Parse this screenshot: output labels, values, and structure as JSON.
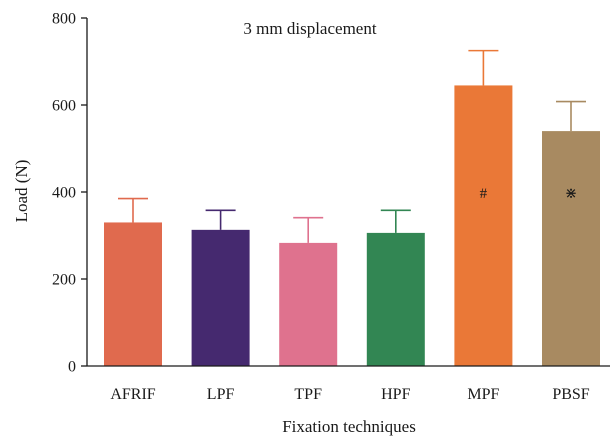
{
  "chart_data": {
    "type": "bar",
    "title": "3 mm displacement",
    "xlabel": "Fixation techniques",
    "ylabel": "Load (N)",
    "ylim": [
      0,
      800
    ],
    "yticks": [
      0,
      200,
      400,
      600,
      800
    ],
    "categories": [
      "AFRIF",
      "LPF",
      "TPF",
      "HPF",
      "MPF",
      "PBSF"
    ],
    "values": [
      330,
      313,
      283,
      306,
      645,
      540
    ],
    "errors": [
      55,
      45,
      58,
      52,
      80,
      68
    ],
    "colors": [
      "#e06a4e",
      "#45296f",
      "#df728e",
      "#328653",
      "#ea7837",
      "#a88a61"
    ],
    "markers": [
      "",
      "",
      "",
      "",
      "#",
      "⋇"
    ],
    "grid": false,
    "legend": "none"
  }
}
